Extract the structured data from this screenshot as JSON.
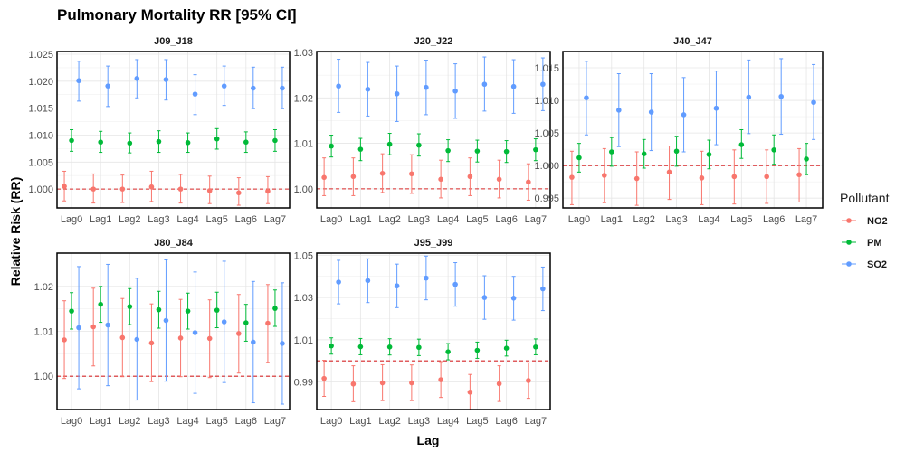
{
  "chart_data": {
    "type": "scatter",
    "title": "Pulmonary Mortality RR [95% CI]",
    "xlabel": "Lag",
    "ylabel": "Relative Risk (RR)",
    "categories": [
      "Lag0",
      "Lag1",
      "Lag2",
      "Lag3",
      "Lag4",
      "Lag5",
      "Lag6",
      "Lag7"
    ],
    "reference_line": 1.0,
    "legend": {
      "title": "Pollutant",
      "placement": "right",
      "items": [
        {
          "name": "NO2",
          "color": "#F8766D"
        },
        {
          "name": "PM",
          "color": "#00BA38"
        },
        {
          "name": "SO2",
          "color": "#619CFF"
        }
      ]
    },
    "panels": [
      {
        "name": "J09_J18",
        "ylim": [
          0.9965,
          1.0255
        ],
        "yticks": [
          1.0,
          1.005,
          1.01,
          1.015,
          1.02,
          1.025
        ],
        "ytick_labels": [
          "1.000",
          "1.005",
          "1.010",
          "1.015",
          "1.020",
          "1.025"
        ],
        "series": [
          {
            "name": "NO2",
            "values": [
              1.0005,
              1.0,
              1.0,
              1.0004,
              1.0,
              0.9997,
              0.9993,
              0.9996
            ],
            "lower": [
              0.9978,
              0.9974,
              0.9975,
              0.9977,
              0.9974,
              0.9973,
              0.997,
              0.9973
            ],
            "upper": [
              1.0033,
              1.0028,
              1.0026,
              1.0033,
              1.0027,
              1.0024,
              1.0021,
              1.0023
            ]
          },
          {
            "name": "PM",
            "values": [
              1.009,
              1.0087,
              1.0085,
              1.0088,
              1.0086,
              1.0093,
              1.0087,
              1.009
            ],
            "lower": [
              1.007,
              1.0068,
              1.0067,
              1.0068,
              1.0068,
              1.0074,
              1.0068,
              1.007
            ],
            "upper": [
              1.011,
              1.0107,
              1.0104,
              1.0108,
              1.0104,
              1.0112,
              1.0106,
              1.011
            ]
          },
          {
            "name": "SO2",
            "values": [
              1.0201,
              1.0191,
              1.0205,
              1.0203,
              1.0176,
              1.0191,
              1.0187,
              1.0187
            ],
            "lower": [
              1.0163,
              1.0153,
              1.0169,
              1.0165,
              1.0138,
              1.0155,
              1.0149,
              1.0149
            ],
            "upper": [
              1.0237,
              1.0228,
              1.024,
              1.024,
              1.0212,
              1.0228,
              1.0226,
              1.0226
            ]
          }
        ]
      },
      {
        "name": "J20_J22",
        "ylim": [
          0.9958,
          1.0302
        ],
        "yticks": [
          1.0,
          1.01,
          1.02,
          1.03
        ],
        "ytick_labels": [
          "1.00",
          "1.01",
          "1.02",
          "1.03"
        ],
        "series": [
          {
            "name": "NO2",
            "values": [
              1.0025,
              1.0027,
              1.0034,
              1.0033,
              1.0021,
              1.0027,
              1.0021,
              1.0015
            ],
            "lower": [
              0.9985,
              0.9985,
              0.9992,
              0.999,
              0.998,
              0.9985,
              0.998,
              0.9975
            ],
            "upper": [
              1.0068,
              1.0068,
              1.0077,
              1.0075,
              1.0063,
              1.0068,
              1.0063,
              1.0055
            ]
          },
          {
            "name": "PM",
            "values": [
              1.0094,
              1.0087,
              1.0098,
              1.0096,
              1.0084,
              1.0083,
              1.0082,
              1.0086
            ],
            "lower": [
              1.007,
              1.0062,
              1.0075,
              1.0072,
              1.006,
              1.0059,
              1.0058,
              1.0062
            ],
            "upper": [
              1.0118,
              1.0111,
              1.0122,
              1.0121,
              1.0108,
              1.0107,
              1.0106,
              1.011
            ]
          },
          {
            "name": "SO2",
            "values": [
              1.0226,
              1.0219,
              1.0209,
              1.0223,
              1.0215,
              1.023,
              1.0225,
              1.023
            ],
            "lower": [
              1.0168,
              1.016,
              1.0148,
              1.0163,
              1.0155,
              1.0171,
              1.0166,
              1.0172
            ],
            "upper": [
              1.0285,
              1.0278,
              1.027,
              1.0283,
              1.0275,
              1.029,
              1.0284,
              1.0288
            ]
          }
        ]
      },
      {
        "name": "J40_J47",
        "ylim": [
          0.9935,
          1.0175
        ],
        "yticks": [
          0.995,
          1.0,
          1.005,
          1.01,
          1.015
        ],
        "ytick_labels": [
          "0.995",
          "1.000",
          "1.005",
          "1.010",
          "1.015"
        ],
        "series": [
          {
            "name": "NO2",
            "values": [
              0.9982,
              0.9985,
              0.998,
              0.999,
              0.9981,
              0.9983,
              0.9983,
              0.9986
            ],
            "lower": [
              0.994,
              0.9943,
              0.9939,
              0.9948,
              0.994,
              0.9941,
              0.9942,
              0.9944
            ],
            "upper": [
              1.0022,
              1.0026,
              1.0021,
              1.003,
              1.0022,
              1.0024,
              1.0024,
              1.0026
            ]
          },
          {
            "name": "PM",
            "values": [
              1.0012,
              1.0021,
              1.0018,
              1.0022,
              1.0017,
              1.0032,
              1.0024,
              1.001
            ],
            "lower": [
              0.999,
              0.9999,
              0.9996,
              0.9999,
              0.9995,
              1.0011,
              1.0002,
              0.9986
            ],
            "upper": [
              1.0034,
              1.0043,
              1.004,
              1.0045,
              1.0039,
              1.0055,
              1.0047,
              1.0034
            ]
          },
          {
            "name": "SO2",
            "values": [
              1.0104,
              1.0085,
              1.0082,
              1.0078,
              1.0088,
              1.0105,
              1.0106,
              1.0097
            ],
            "lower": [
              1.0047,
              1.0029,
              1.0023,
              1.0021,
              1.0032,
              1.0049,
              1.0048,
              1.004
            ],
            "upper": [
              1.016,
              1.0141,
              1.0141,
              1.0135,
              1.0145,
              1.0162,
              1.0164,
              1.0155
            ]
          }
        ]
      },
      {
        "name": "J80_J84",
        "ylim": [
          0.9926,
          1.0274
        ],
        "yticks": [
          1.0,
          1.01,
          1.02
        ],
        "ytick_labels": [
          "1.00",
          "1.01",
          "1.02"
        ],
        "series": [
          {
            "name": "NO2",
            "values": [
              1.0081,
              1.011,
              1.0086,
              1.0074,
              1.0085,
              1.0084,
              1.0095,
              1.0118
            ],
            "lower": [
              0.9995,
              1.0023,
              0.9999,
              0.9988,
              0.9999,
              0.9997,
              1.0007,
              1.0031
            ],
            "upper": [
              1.0168,
              1.0196,
              1.0173,
              1.0161,
              1.0171,
              1.017,
              1.0182,
              1.0204
            ]
          },
          {
            "name": "PM",
            "values": [
              1.0145,
              1.016,
              1.0155,
              1.0148,
              1.0145,
              1.0147,
              1.0119,
              1.0151
            ],
            "lower": [
              1.0105,
              1.012,
              1.0115,
              1.0107,
              1.0105,
              1.0108,
              1.0078,
              1.0111
            ],
            "upper": [
              1.0186,
              1.02,
              1.0195,
              1.0189,
              1.0185,
              1.0187,
              1.016,
              1.0192
            ]
          },
          {
            "name": "SO2",
            "values": [
              1.0108,
              1.0114,
              1.0082,
              1.0124,
              1.0097,
              1.0121,
              1.0076,
              1.0073
            ],
            "lower": [
              0.9972,
              0.9979,
              0.9947,
              0.9989,
              0.9962,
              0.9986,
              0.9941,
              0.9938
            ],
            "upper": [
              1.0244,
              1.0249,
              1.0218,
              1.0259,
              1.0232,
              1.0256,
              1.0211,
              1.0208
            ]
          }
        ]
      },
      {
        "name": "J95_J99",
        "ylim": [
          0.977,
          1.051
        ],
        "yticks": [
          0.99,
          1.01,
          1.03,
          1.05
        ],
        "ytick_labels": [
          "0.99",
          "1.01",
          "1.03",
          "1.05"
        ],
        "series": [
          {
            "name": "NO2",
            "values": [
              0.9917,
              0.9891,
              0.9896,
              0.9896,
              0.9911,
              0.9852,
              0.9892,
              0.9907
            ],
            "lower": [
              0.9832,
              0.9807,
              0.9812,
              0.9812,
              0.9827,
              0.9768,
              0.9808,
              0.9823
            ],
            "upper": [
              1.0003,
              0.9977,
              0.9982,
              0.9981,
              0.9997,
              0.9936,
              0.9977,
              0.9991
            ]
          },
          {
            "name": "PM",
            "values": [
              1.0071,
              1.0067,
              1.0066,
              1.0064,
              1.0043,
              1.005,
              1.006,
              1.0066
            ],
            "lower": [
              1.0032,
              1.0029,
              1.0028,
              1.0025,
              1.0005,
              1.0012,
              1.0023,
              1.0029
            ],
            "upper": [
              1.0109,
              1.0106,
              1.0105,
              1.0103,
              1.0082,
              1.0089,
              1.0098,
              1.0104
            ]
          },
          {
            "name": "SO2",
            "values": [
              1.0373,
              1.038,
              1.0355,
              1.0392,
              1.0362,
              1.03,
              1.0297,
              1.0341
            ],
            "lower": [
              1.027,
              1.0276,
              1.0252,
              1.0289,
              1.0259,
              1.0197,
              1.0193,
              1.0238
            ],
            "upper": [
              1.0476,
              1.0483,
              1.0458,
              1.0496,
              1.0465,
              1.0403,
              1.04,
              1.0444
            ]
          }
        ]
      }
    ]
  }
}
